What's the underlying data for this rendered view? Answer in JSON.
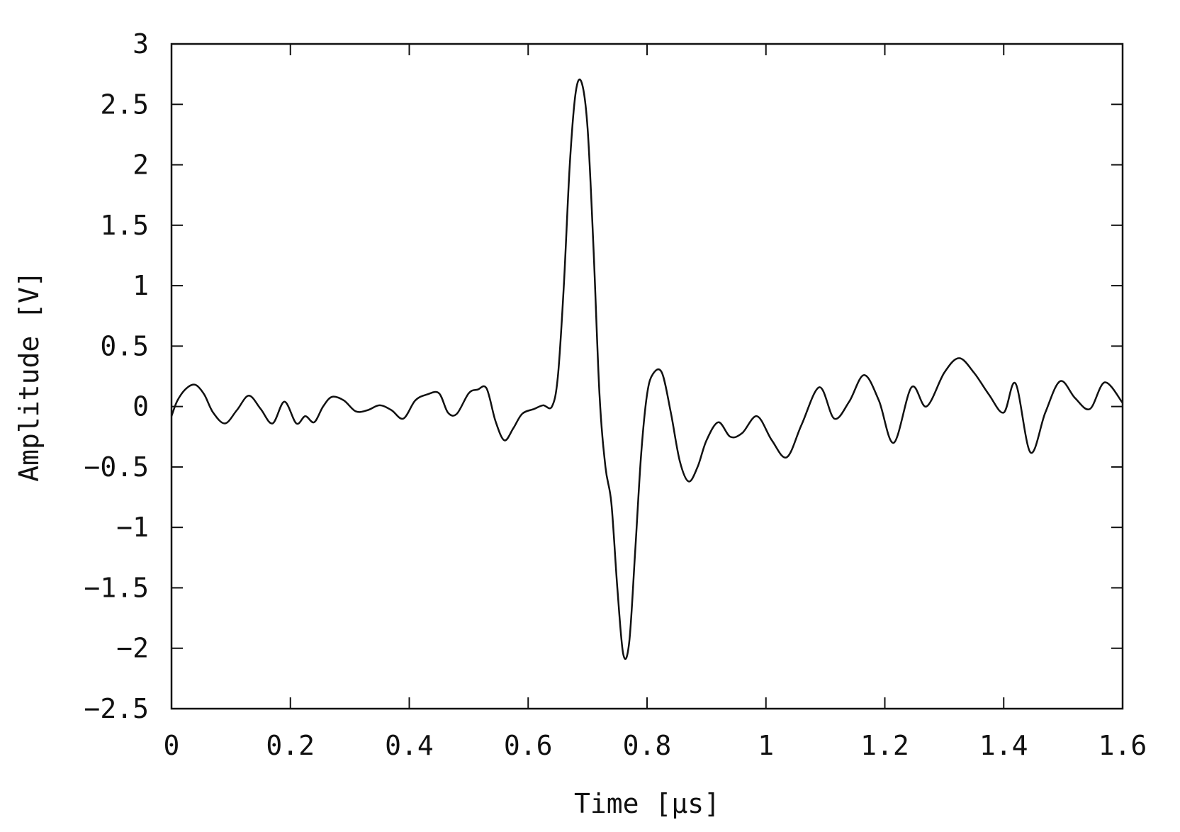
{
  "chart_data": {
    "type": "line",
    "title": "",
    "xlabel": "Time [μs]",
    "ylabel": "Amplitude [V]",
    "xlim": [
      0,
      1.6
    ],
    "ylim": [
      -2.5,
      3
    ],
    "grid": false,
    "legend": "none",
    "line_color": "#111111",
    "x_ticks": [
      {
        "value": 0,
        "label": "0"
      },
      {
        "value": 0.2,
        "label": "0.2"
      },
      {
        "value": 0.4,
        "label": "0.4"
      },
      {
        "value": 0.6,
        "label": "0.6"
      },
      {
        "value": 0.8,
        "label": "0.8"
      },
      {
        "value": 1,
        "label": "1"
      },
      {
        "value": 1.2,
        "label": "1.2"
      },
      {
        "value": 1.4,
        "label": "1.4"
      },
      {
        "value": 1.6,
        "label": "1.6"
      }
    ],
    "y_ticks": [
      {
        "value": 3,
        "label": "3"
      },
      {
        "value": 2.5,
        "label": "2.5"
      },
      {
        "value": 2,
        "label": "2"
      },
      {
        "value": 1.5,
        "label": "1.5"
      },
      {
        "value": 1,
        "label": "1"
      },
      {
        "value": 0.5,
        "label": "0.5"
      },
      {
        "value": 0,
        "label": "0"
      },
      {
        "value": -0.5,
        "label": "−0.5"
      },
      {
        "value": -1,
        "label": "−1"
      },
      {
        "value": -1.5,
        "label": "−1.5"
      },
      {
        "value": -2,
        "label": "−2"
      },
      {
        "value": -2.5,
        "label": "−2.5"
      }
    ],
    "series": [
      {
        "x": [
          0,
          0.01,
          0.025,
          0.04,
          0.055,
          0.07,
          0.09,
          0.11,
          0.13,
          0.15,
          0.17,
          0.19,
          0.21,
          0.225,
          0.24,
          0.255,
          0.27,
          0.29,
          0.31,
          0.33,
          0.35,
          0.37,
          0.39,
          0.41,
          0.43,
          0.45,
          0.465,
          0.48,
          0.5,
          0.515,
          0.53,
          0.545,
          0.56,
          0.575,
          0.59,
          0.61,
          0.625,
          0.64,
          0.65,
          0.66,
          0.67,
          0.68,
          0.69,
          0.7,
          0.71,
          0.72,
          0.73,
          0.74,
          0.75,
          0.76,
          0.77,
          0.78,
          0.79,
          0.8,
          0.81,
          0.825,
          0.84,
          0.855,
          0.87,
          0.885,
          0.9,
          0.92,
          0.94,
          0.96,
          0.985,
          1.01,
          1.035,
          1.06,
          1.09,
          1.115,
          1.14,
          1.165,
          1.19,
          1.215,
          1.245,
          1.27,
          1.3,
          1.325,
          1.35,
          1.375,
          1.4,
          1.42,
          1.445,
          1.47,
          1.495,
          1.52,
          1.545,
          1.57,
          1.6
        ],
        "y": [
          -0.08,
          0.05,
          0.15,
          0.18,
          0.1,
          -0.05,
          -0.14,
          -0.03,
          0.09,
          -0.02,
          -0.14,
          0.04,
          -0.14,
          -0.08,
          -0.13,
          0.0,
          0.08,
          0.05,
          -0.04,
          -0.03,
          0.01,
          -0.03,
          -0.1,
          0.05,
          0.1,
          0.11,
          -0.05,
          -0.06,
          0.11,
          0.14,
          0.15,
          -0.12,
          -0.28,
          -0.18,
          -0.06,
          -0.02,
          0.01,
          0.0,
          0.25,
          1.0,
          2.0,
          2.6,
          2.68,
          2.3,
          1.3,
          0.1,
          -0.5,
          -0.8,
          -1.5,
          -2.05,
          -1.95,
          -1.2,
          -0.4,
          0.1,
          0.27,
          0.28,
          -0.05,
          -0.45,
          -0.62,
          -0.5,
          -0.28,
          -0.13,
          -0.25,
          -0.22,
          -0.08,
          -0.28,
          -0.42,
          -0.15,
          0.16,
          -0.1,
          0.04,
          0.26,
          0.05,
          -0.3,
          0.16,
          0.0,
          0.28,
          0.4,
          0.28,
          0.1,
          -0.05,
          0.19,
          -0.38,
          -0.05,
          0.21,
          0.07,
          -0.02,
          0.2,
          0.03
        ]
      }
    ]
  }
}
